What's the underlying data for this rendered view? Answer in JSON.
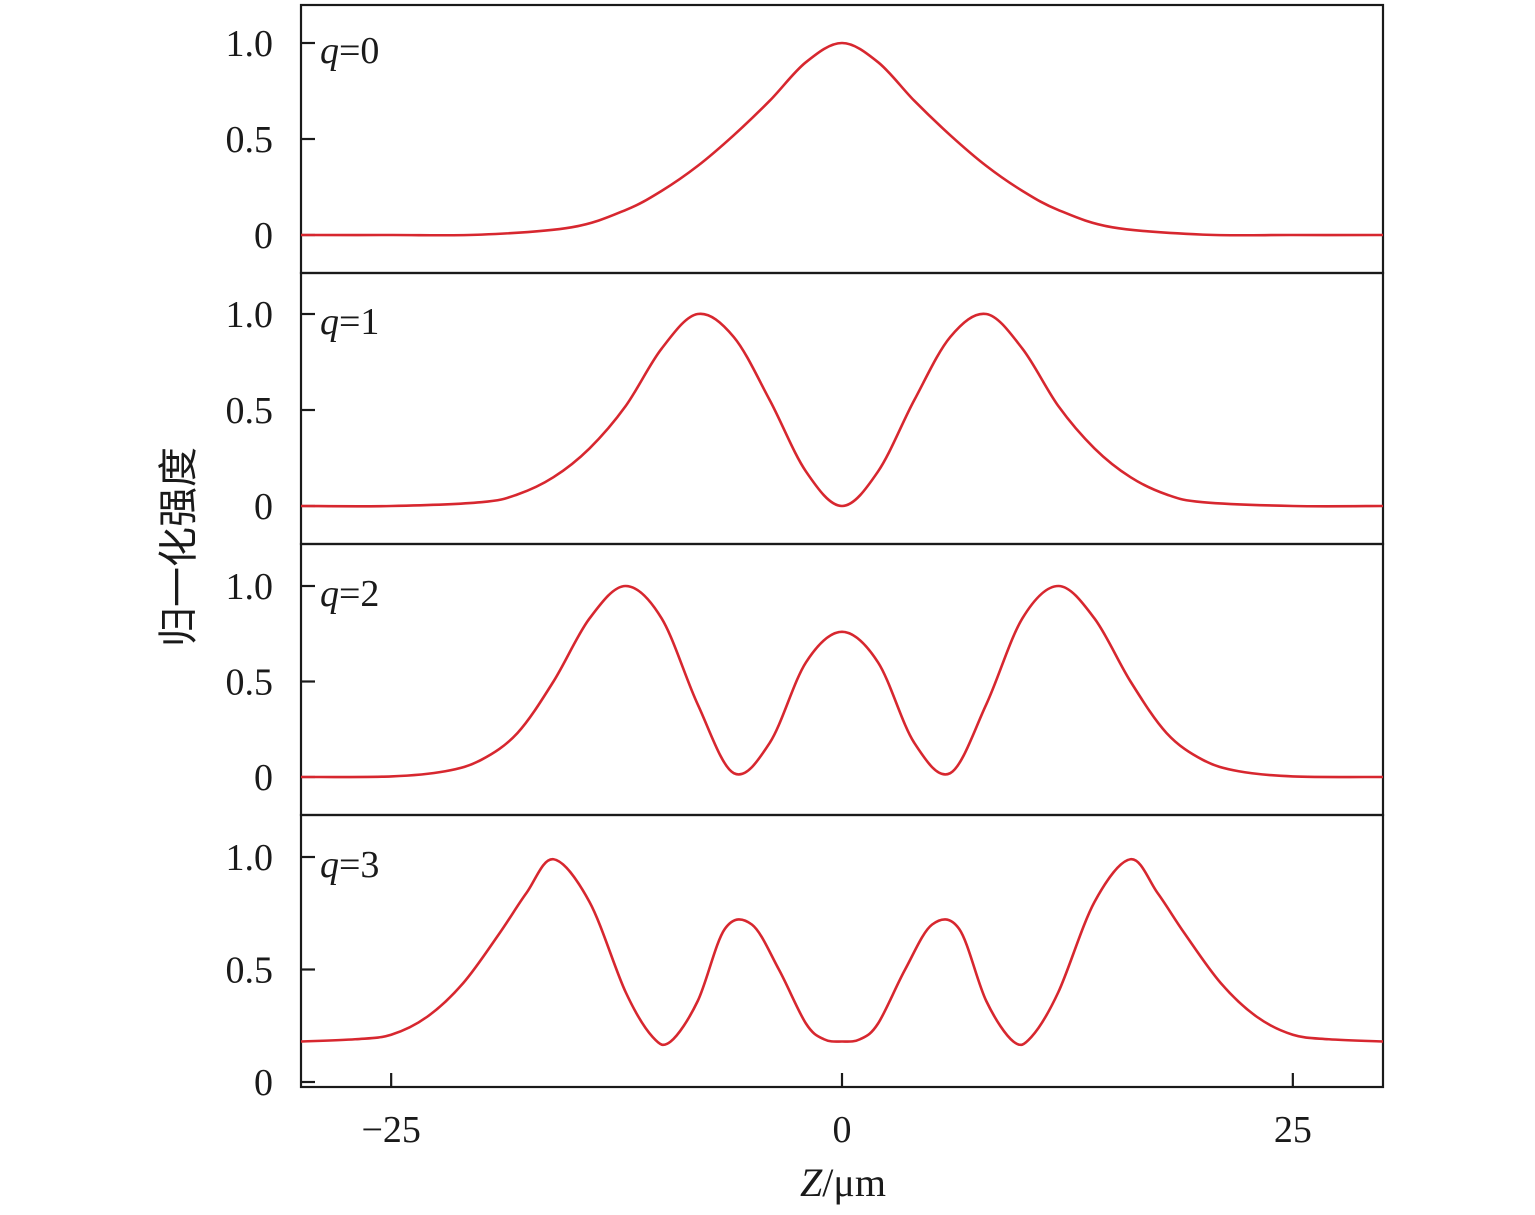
{
  "chart_data": {
    "type": "line",
    "xlabel_italic": "Z",
    "xlabel_rest": "/μm",
    "ylabel": "归一化强度",
    "xlim": [
      -30,
      30
    ],
    "ylim": [
      0,
      1.2
    ],
    "x_ticks": [
      -25,
      0,
      25
    ],
    "x_tick_labels": [
      "−25",
      "0",
      "25"
    ],
    "y_ticks": [
      0,
      0.5,
      1.0
    ],
    "y_tick_labels": [
      "0",
      "0.5",
      "1.0"
    ],
    "line_color": "#d7272f",
    "grid": false,
    "panels": [
      {
        "label_var": "q",
        "label_rest": "=0",
        "x": [
          -30,
          -25,
          -20,
          -15,
          -12,
          -10,
          -8,
          -6,
          -4,
          -2,
          0,
          2,
          4,
          6,
          8,
          10,
          12,
          15,
          20,
          25,
          30
        ],
        "y": [
          0,
          0,
          0.002,
          0.04,
          0.13,
          0.23,
          0.36,
          0.52,
          0.7,
          0.9,
          1.0,
          0.9,
          0.7,
          0.52,
          0.36,
          0.23,
          0.13,
          0.04,
          0.002,
          0,
          0
        ]
      },
      {
        "label_var": "q",
        "label_rest": "=1",
        "x": [
          -30,
          -25,
          -20,
          -18,
          -16,
          -14,
          -12,
          -10,
          -8,
          -6,
          -4,
          -2,
          0,
          2,
          4,
          6,
          8,
          10,
          12,
          14,
          16,
          18,
          20,
          25,
          30
        ],
        "y": [
          0,
          0,
          0.02,
          0.06,
          0.15,
          0.3,
          0.52,
          0.82,
          1.0,
          0.88,
          0.55,
          0.18,
          0,
          0.18,
          0.55,
          0.88,
          1.0,
          0.82,
          0.52,
          0.3,
          0.15,
          0.06,
          0.02,
          0,
          0
        ]
      },
      {
        "label_var": "q",
        "label_rest": "=2",
        "x": [
          -30,
          -25,
          -22,
          -20,
          -18,
          -16,
          -14,
          -12,
          -10,
          -8,
          -6,
          -4,
          -2,
          0,
          2,
          4,
          6,
          8,
          10,
          12,
          14,
          16,
          18,
          20,
          22,
          25,
          30
        ],
        "y": [
          0,
          0.003,
          0.03,
          0.09,
          0.23,
          0.5,
          0.83,
          1.0,
          0.83,
          0.38,
          0.02,
          0.18,
          0.6,
          0.76,
          0.6,
          0.18,
          0.02,
          0.38,
          0.83,
          1.0,
          0.83,
          0.5,
          0.23,
          0.09,
          0.03,
          0.003,
          0
        ]
      },
      {
        "label_var": "q",
        "label_rest": "=3",
        "x": [
          -30,
          -27,
          -25,
          -23,
          -21,
          -19,
          -17.5,
          -16,
          -14,
          -12,
          -10.5,
          -9.5,
          -8,
          -6.5,
          -5,
          -3.5,
          -2,
          -1,
          0,
          1,
          2,
          3.5,
          5,
          6.5,
          8,
          9.5,
          10.5,
          12,
          14,
          16,
          17.5,
          19,
          21,
          23,
          25,
          27,
          30
        ],
        "y": [
          0.18,
          0.19,
          0.21,
          0.29,
          0.44,
          0.66,
          0.84,
          0.99,
          0.8,
          0.4,
          0.2,
          0.18,
          0.36,
          0.68,
          0.7,
          0.5,
          0.26,
          0.19,
          0.18,
          0.19,
          0.26,
          0.5,
          0.7,
          0.68,
          0.36,
          0.18,
          0.2,
          0.4,
          0.8,
          0.99,
          0.84,
          0.66,
          0.44,
          0.29,
          0.21,
          0.19,
          0.18
        ]
      }
    ]
  }
}
